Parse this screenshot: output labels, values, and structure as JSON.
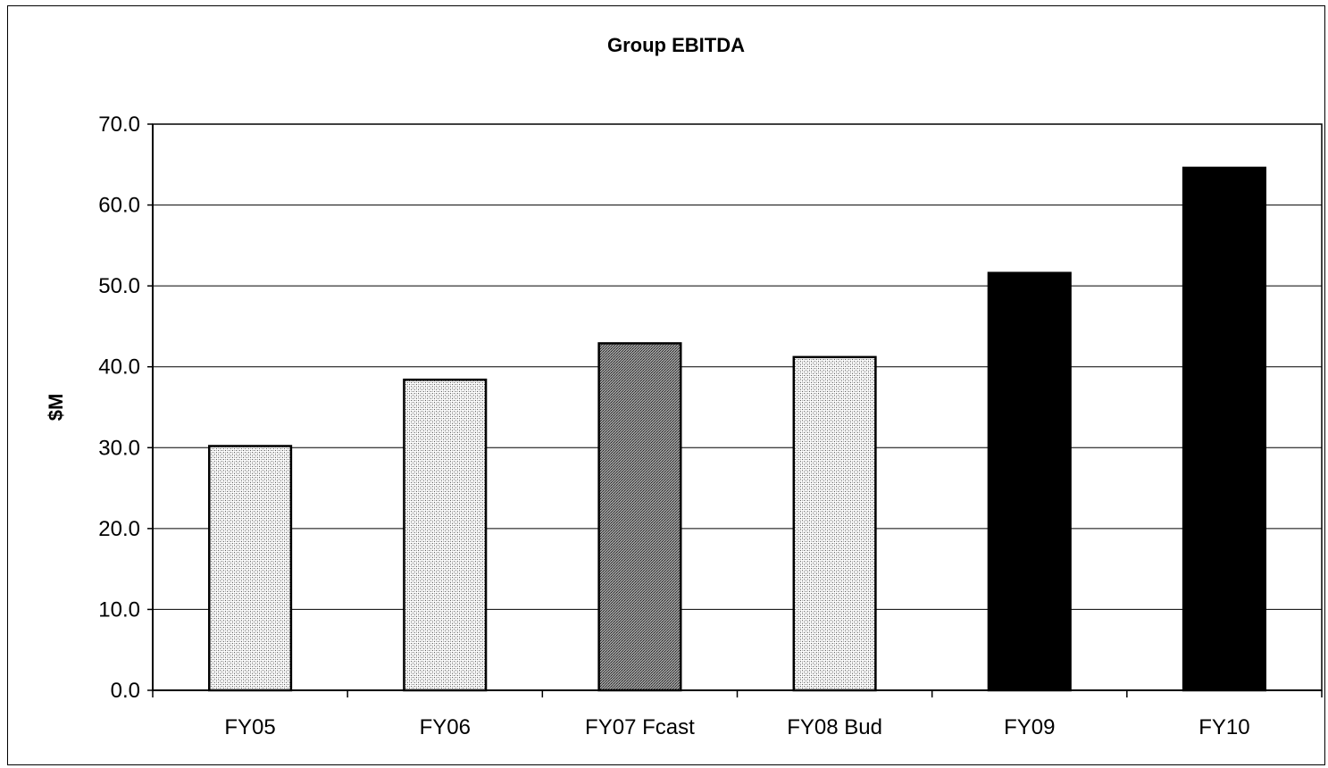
{
  "chart_data": {
    "type": "bar",
    "title": "Group EBITDA",
    "xlabel": "",
    "ylabel": "$M",
    "categories": [
      "FY05",
      "FY06",
      "FY07 Fcast",
      "FY08 Bud",
      "FY09",
      "FY10"
    ],
    "values": [
      30.2,
      38.4,
      42.9,
      41.2,
      51.6,
      64.6
    ],
    "ylim": [
      0,
      70
    ],
    "yticks": [
      "0.0",
      "10.0",
      "20.0",
      "30.0",
      "40.0",
      "50.0",
      "60.0",
      "70.0"
    ],
    "grid": true,
    "legend": "none",
    "bar_styles": [
      "light-dots",
      "light-dots",
      "dark-dots",
      "light-dots",
      "solid-black",
      "solid-black"
    ]
  }
}
